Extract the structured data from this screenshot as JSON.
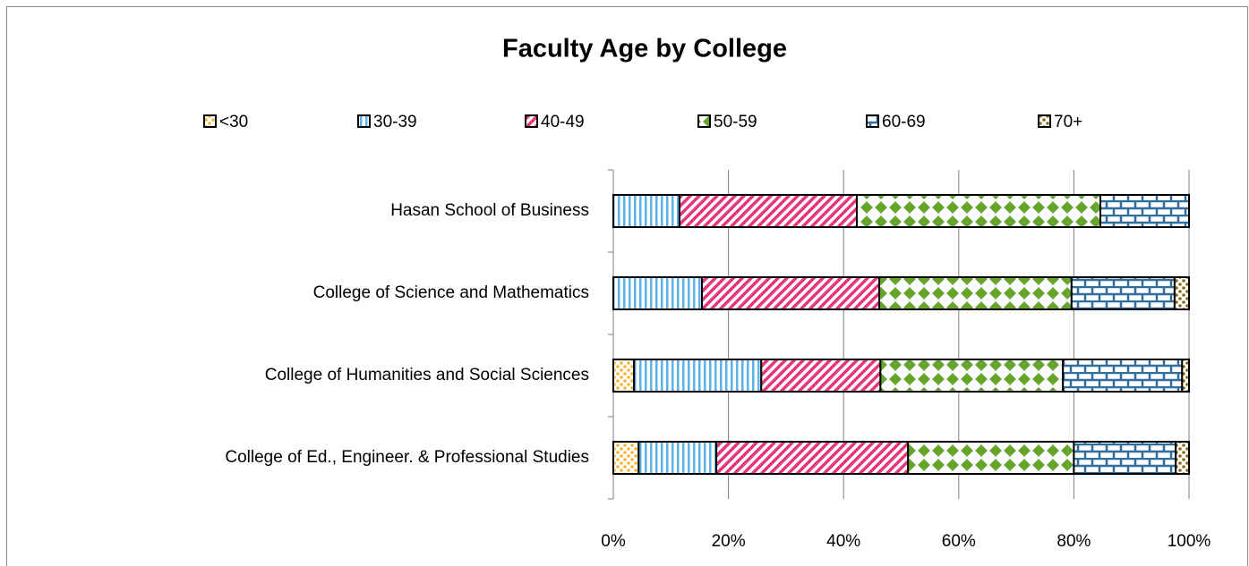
{
  "chart_data": {
    "type": "stacked_barh",
    "title": "Faculty Age by College",
    "categories": [
      "Hasan School of Business",
      "College of Science and Mathematics",
      "College of Humanities and Social Sciences",
      "College of Ed., Engineer. & Professional Studies"
    ],
    "series": [
      {
        "name": "<30",
        "color": "#f5b731",
        "pattern": "dots",
        "values": [
          0,
          0,
          3.6,
          4.4
        ]
      },
      {
        "name": "30-39",
        "color": "#5bb3ea",
        "pattern": "vertical",
        "values": [
          11.5,
          15.4,
          22.1,
          13.5
        ]
      },
      {
        "name": "40-49",
        "color": "#e8347a",
        "pattern": "diagonal",
        "values": [
          30.8,
          30.8,
          20.7,
          33.3
        ]
      },
      {
        "name": "50-59",
        "color": "#66a832",
        "pattern": "diamonds",
        "values": [
          42.3,
          33.4,
          31.7,
          28.8
        ]
      },
      {
        "name": "60-69",
        "color": "#2e6f9e",
        "pattern": "bricks",
        "values": [
          15.4,
          17.9,
          20.7,
          17.7
        ]
      },
      {
        "name": "70+",
        "color": "#8b6a20",
        "pattern": "dots",
        "values": [
          0,
          2.5,
          1.2,
          2.3
        ]
      }
    ],
    "xlim": [
      0,
      100
    ],
    "xticks": [
      {
        "value": 0,
        "label": "0%"
      },
      {
        "value": 20,
        "label": "20%"
      },
      {
        "value": 40,
        "label": "40%"
      },
      {
        "value": 60,
        "label": "60%"
      },
      {
        "value": 80,
        "label": "80%"
      },
      {
        "value": 100,
        "label": "100%"
      }
    ],
    "grid": true,
    "legend": "top"
  }
}
